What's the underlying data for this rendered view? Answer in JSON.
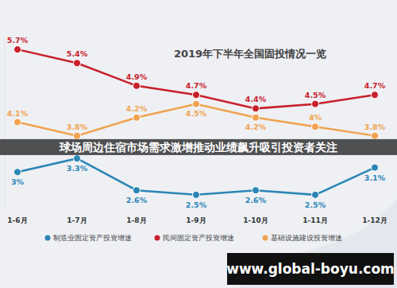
{
  "chart_data": {
    "type": "line",
    "title": "2019年下半年全国固投情况一览",
    "annotations": [
      "球场周边住宿市场需求激增推动业绩飙升吸引投资者关注",
      "www.global-boyu.com"
    ],
    "categories": [
      "1-6月",
      "1-7月",
      "1-8月",
      "1-9月",
      "1-10月",
      "1-11月",
      "1-12月"
    ],
    "series": [
      {
        "name": "制造业固定资产投资增速",
        "color": "#2b86b5",
        "marker": "circle",
        "values": [
          3,
          3.3,
          2.6,
          2.5,
          2.6,
          2.5,
          3.1
        ],
        "value_labels": [
          "3%",
          "3.3%",
          "2.6%",
          "2.5%",
          "2.6%",
          "2.5%",
          "3.1%"
        ]
      },
      {
        "name": "民间固定资产投资增速",
        "color": "#c8202b",
        "marker": "circle",
        "values": [
          5.7,
          5.4,
          4.9,
          4.7,
          4.4,
          4.5,
          4.7
        ],
        "value_labels": [
          "5.7%",
          "5.4%",
          "4.9%",
          "4.7%",
          "4.4%",
          "4.5%",
          "4.7%"
        ]
      },
      {
        "name": "基础设施建设投资增速",
        "color": "#f0a24e",
        "marker": "circle",
        "values": [
          4.1,
          3.8,
          4.2,
          4.5,
          4.2,
          4.0,
          3.8
        ],
        "value_labels": [
          "4.1%",
          "3.8%",
          "4.2%",
          "4.5%",
          "4.2%",
          "4%",
          "3.8%"
        ]
      }
    ],
    "ylim": [
      2.2,
      6.0
    ],
    "tick_labels": "x",
    "data_labels": true,
    "legend": "bottom",
    "grid": false
  }
}
